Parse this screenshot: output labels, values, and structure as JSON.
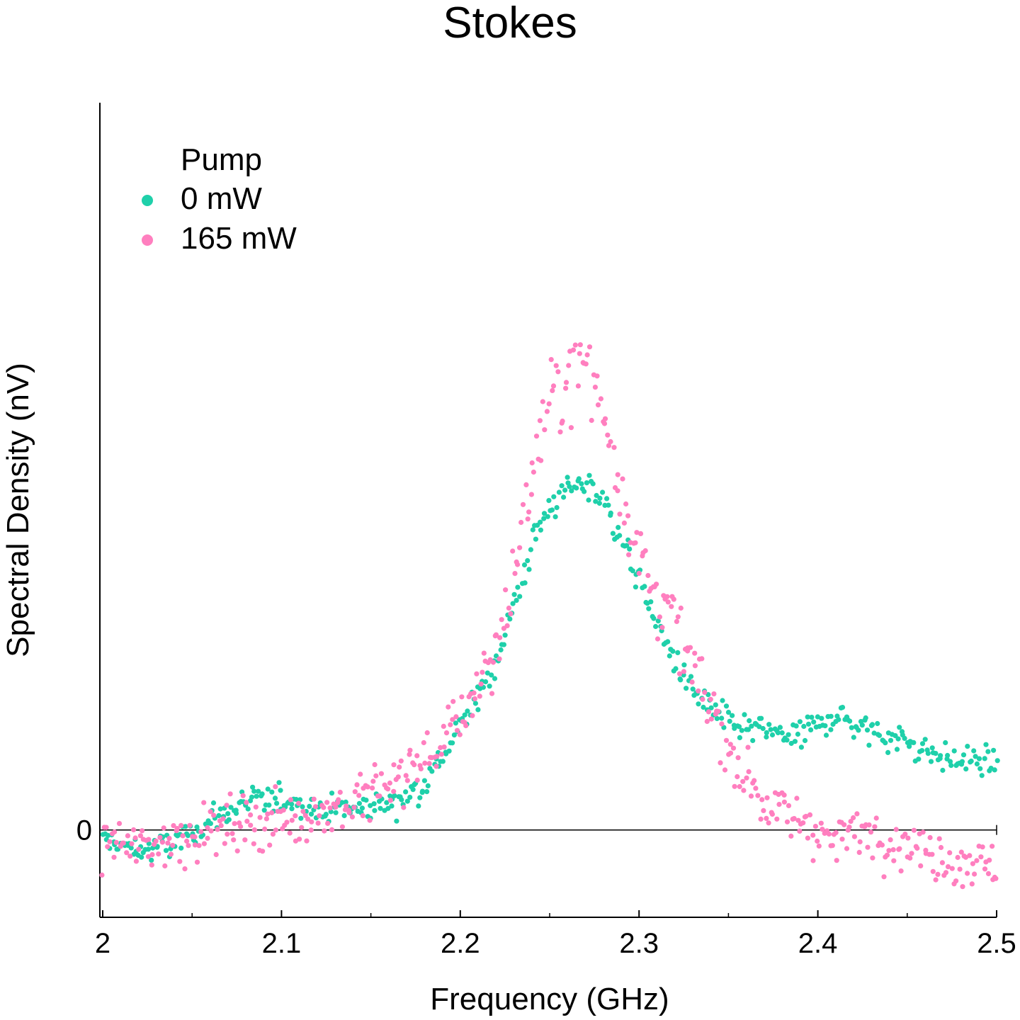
{
  "chart_data": {
    "type": "scatter",
    "title": "Stokes",
    "xlabel": "Frequency (GHz)",
    "ylabel": "Spectral Density (nV)",
    "xlim": [
      2.0,
      2.5
    ],
    "ylim": [
      -0.49,
      4.08
    ],
    "x_ticks": [
      "2",
      "2.1",
      "2.2",
      "2.3",
      "2.4",
      "2.5"
    ],
    "y_tick_labels": [
      "0"
    ],
    "zero_line": true,
    "grid": false,
    "legend": {
      "title": "Pump",
      "position": "top-left",
      "entries": [
        "0 mW",
        "165 mW"
      ]
    },
    "series": [
      {
        "name": "0 mW",
        "color": "#1fd0aa",
        "points_note_x": [
          2.0,
          2.02,
          2.04,
          2.06,
          2.08,
          2.1,
          2.12,
          2.14,
          2.16,
          2.18,
          2.2,
          2.21,
          2.22,
          2.23,
          2.24,
          2.25,
          2.26,
          2.27,
          2.28,
          2.29,
          2.3,
          2.31,
          2.32,
          2.33,
          2.34,
          2.35,
          2.37,
          2.39,
          2.41,
          2.43,
          2.45,
          2.47,
          2.5
        ],
        "points_note_y": [
          -0.05,
          -0.12,
          -0.08,
          0.05,
          0.15,
          0.18,
          0.12,
          0.12,
          0.15,
          0.25,
          0.58,
          0.75,
          0.95,
          1.25,
          1.6,
          1.82,
          1.9,
          1.95,
          1.85,
          1.65,
          1.4,
          1.15,
          0.95,
          0.78,
          0.68,
          0.6,
          0.55,
          0.53,
          0.65,
          0.55,
          0.5,
          0.4,
          0.38
        ],
        "spread": 0.12
      },
      {
        "name": "165 mW",
        "color": "#ff7fbf",
        "points_note_x": [
          2.0,
          2.02,
          2.04,
          2.06,
          2.08,
          2.1,
          2.12,
          2.14,
          2.16,
          2.18,
          2.2,
          2.21,
          2.22,
          2.23,
          2.24,
          2.25,
          2.26,
          2.27,
          2.28,
          2.29,
          2.3,
          2.31,
          2.32,
          2.33,
          2.34,
          2.35,
          2.37,
          2.39,
          2.41,
          2.43,
          2.45,
          2.47,
          2.5
        ],
        "points_note_y": [
          -0.05,
          -0.1,
          -0.05,
          0.0,
          0.05,
          0.05,
          0.1,
          0.15,
          0.25,
          0.4,
          0.6,
          0.85,
          1.0,
          1.4,
          2.0,
          2.4,
          2.55,
          2.6,
          2.35,
          1.95,
          1.55,
          1.35,
          1.15,
          0.9,
          0.7,
          0.45,
          0.15,
          0.05,
          -0.05,
          0.0,
          -0.1,
          -0.15,
          -0.2
        ],
        "spread": 0.22
      }
    ]
  }
}
